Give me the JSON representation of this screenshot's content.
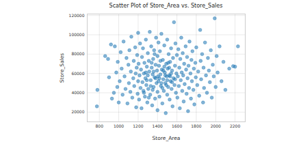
{
  "chart_data": {
    "type": "scatter",
    "title": "Scatter Plot of Store_Area vs. Store_Sales",
    "x_label": "Store_Area",
    "y_label": "Store_Sales",
    "color": "#1f77b4",
    "grid": true,
    "xlim": [
      675,
      2305
    ],
    "ylim": [
      10000,
      121500
    ],
    "xticks": [
      800,
      1000,
      1200,
      1400,
      1600,
      1800,
      2000,
      2200
    ],
    "yticks": [
      20000,
      40000,
      60000,
      80000,
      100000,
      120000
    ],
    "x": [
      775,
      780,
      860,
      890,
      900,
      920,
      930,
      950,
      960,
      975,
      985,
      990,
      1000,
      1010,
      1020,
      1030,
      1040,
      1050,
      1060,
      1070,
      1080,
      1090,
      1100,
      1105,
      1110,
      1120,
      1125,
      1130,
      1140,
      1150,
      1155,
      1160,
      1170,
      1175,
      1180,
      1185,
      1190,
      1195,
      1200,
      1200,
      1205,
      1210,
      1215,
      1220,
      1225,
      1230,
      1235,
      1240,
      1245,
      1250,
      1255,
      1260,
      1265,
      1270,
      1275,
      1280,
      1285,
      1290,
      1295,
      1300,
      1300,
      1305,
      1310,
      1315,
      1320,
      1325,
      1330,
      1335,
      1340,
      1345,
      1350,
      1355,
      1360,
      1365,
      1370,
      1375,
      1380,
      1385,
      1390,
      1395,
      1400,
      1400,
      1400,
      1405,
      1410,
      1260,
      1290,
      1330,
      1360,
      1380,
      1340,
      1310,
      1370,
      1280,
      1350,
      1410,
      1415,
      1420,
      1425,
      1430,
      1435,
      1440,
      1445,
      1450,
      1455,
      1460,
      1465,
      1470,
      1475,
      1480,
      1485,
      1490,
      1495,
      1500,
      1500,
      1505,
      1510,
      1515,
      1520,
      1525,
      1530,
      1535,
      1540,
      1545,
      1550,
      1555,
      1560,
      1565,
      1570,
      1575,
      1580,
      1585,
      1590,
      1595,
      1600,
      1420,
      1440,
      1460,
      1480,
      1500,
      1520,
      1540,
      1450,
      1490,
      1530,
      1470,
      1510,
      1550,
      1580,
      1430,
      1605,
      1610,
      1615,
      1620,
      1625,
      1630,
      1635,
      1640,
      1645,
      1650,
      1655,
      1660,
      1665,
      1670,
      1675,
      1680,
      1690,
      1695,
      1700,
      1705,
      1710,
      1715,
      1720,
      1725,
      1730,
      1740,
      1745,
      1750,
      1755,
      1760,
      1770,
      1775,
      1780,
      1790,
      1795,
      1800,
      1810,
      1820,
      1830,
      1840,
      1845,
      1850,
      1860,
      1870,
      1875,
      1880,
      1890,
      1900,
      1910,
      1920,
      1930,
      1940,
      1950,
      1960,
      1970,
      1980,
      1990,
      2000,
      2010,
      2020,
      2040,
      2060,
      2080,
      2100,
      2140,
      2180,
      2200,
      2230
    ],
    "values": [
      26000,
      43000,
      78000,
      75000,
      56000,
      90000,
      34000,
      40000,
      88000,
      61000,
      46000,
      72000,
      30000,
      52000,
      82000,
      65000,
      38000,
      93000,
      57000,
      44000,
      76000,
      29000,
      69000,
      50000,
      84000,
      41000,
      62000,
      98000,
      35000,
      55000,
      73000,
      47000,
      87000,
      60000,
      25000,
      66000,
      79000,
      39000,
      52000,
      102000,
      70000,
      33000,
      58000,
      91000,
      45000,
      64000,
      24000,
      77000,
      51000,
      86000,
      42000,
      60000,
      71000,
      36000,
      55000,
      95000,
      48000,
      67000,
      30000,
      81000,
      58000,
      44000,
      73000,
      62000,
      103000,
      38000,
      53000,
      88000,
      66000,
      27000,
      59000,
      75000,
      46000,
      84000,
      56000,
      34000,
      69000,
      97000,
      50000,
      63000,
      41000,
      78000,
      22000,
      57000,
      92000,
      40000,
      53000,
      47000,
      62000,
      55000,
      71000,
      35000,
      80000,
      61000,
      43000,
      52000,
      68000,
      36000,
      83000,
      59000,
      47000,
      101000,
      64000,
      29000,
      74000,
      54000,
      42000,
      89000,
      61000,
      50000,
      19000,
      70000,
      57000,
      95000,
      38000,
      65000,
      46000,
      80000,
      58000,
      33000,
      72000,
      52000,
      86000,
      44000,
      63000,
      26000,
      76000,
      55000,
      113000,
      48000,
      68000,
      91000,
      40000,
      60000,
      79000,
      55000,
      50000,
      63000,
      58000,
      53000,
      66000,
      60000,
      45000,
      48000,
      57000,
      67000,
      71000,
      51000,
      54000,
      73000,
      35000,
      57000,
      85000,
      47000,
      66000,
      24000,
      75000,
      53000,
      97000,
      61000,
      42000,
      81000,
      58000,
      31000,
      70000,
      49000,
      88000,
      64000,
      39000,
      77000,
      55000,
      21000,
      68000,
      45000,
      93000,
      60000,
      34000,
      74000,
      52000,
      83000,
      43000,
      65000,
      28000,
      71000,
      56000,
      87000,
      48000,
      62000,
      37000,
      105000,
      73000,
      54000,
      80000,
      30000,
      66000,
      45000,
      92000,
      58000,
      40000,
      76000,
      63000,
      51000,
      84000,
      35000,
      69000,
      57000,
      117000,
      46000,
      78000,
      61000,
      88000,
      52000,
      72000,
      43000,
      65000,
      67500,
      67000,
      88000
    ]
  }
}
